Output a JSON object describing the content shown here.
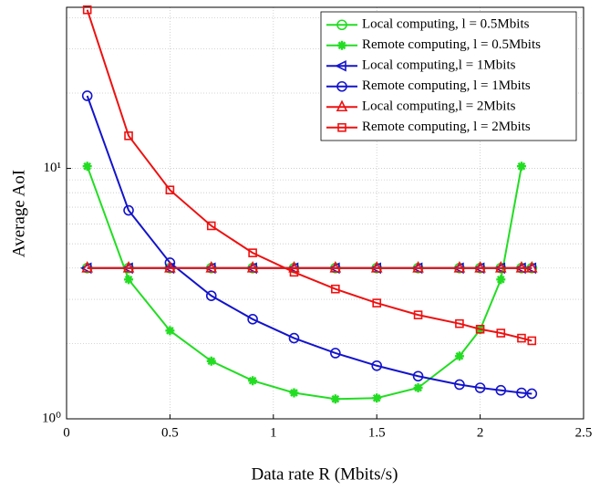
{
  "chart_data": {
    "type": "line",
    "xlabel": "Data rate R (Mbits/s)",
    "ylabel": "Average AoI",
    "x": [
      0.1,
      0.3,
      0.5,
      0.7,
      0.9,
      1.1,
      1.3,
      1.5,
      1.7,
      1.9,
      2.0,
      2.1,
      2.2,
      2.25
    ],
    "series": [
      {
        "name": "Local computing, l = 0.5Mbits",
        "color": "#22dd22",
        "marker": "circle",
        "values": [
          4,
          4,
          4,
          4,
          4,
          4,
          4,
          4,
          4,
          4,
          4,
          4,
          4,
          4
        ]
      },
      {
        "name": "Remote computing, l = 0.5Mbits",
        "color": "#22dd22",
        "marker": "star",
        "values": [
          10.2,
          3.6,
          2.25,
          1.7,
          1.42,
          1.27,
          1.2,
          1.21,
          1.33,
          1.78,
          2.27,
          3.6,
          10.2,
          null
        ]
      },
      {
        "name": "Local computing,l = 1Mbits",
        "color": "#1414cc",
        "marker": "triangle-left",
        "values": [
          4,
          4,
          4,
          4,
          4,
          4,
          4,
          4,
          4,
          4,
          4,
          4,
          4,
          4
        ]
      },
      {
        "name": "Remote computing, l = 1Mbits",
        "color": "#1414cc",
        "marker": "circle",
        "values": [
          19.5,
          6.8,
          4.2,
          3.1,
          2.5,
          2.1,
          1.83,
          1.63,
          1.48,
          1.37,
          1.33,
          1.3,
          1.27,
          1.26
        ]
      },
      {
        "name": "Local computing,l = 2Mbits",
        "color": "#ee1111",
        "marker": "triangle-up",
        "values": [
          4,
          4,
          4,
          4,
          4,
          4,
          4,
          4,
          4,
          4,
          4,
          4,
          4,
          4
        ]
      },
      {
        "name": "Remote computing, l = 2Mbits",
        "color": "#ee1111",
        "marker": "square",
        "values": [
          43,
          13.5,
          8.2,
          5.9,
          4.6,
          3.85,
          3.3,
          2.9,
          2.6,
          2.4,
          2.28,
          2.2,
          2.1,
          2.05
        ]
      }
    ],
    "xlim": [
      0,
      2.5
    ],
    "xticks": [
      0,
      0.5,
      1,
      1.5,
      2,
      2.5
    ],
    "ylim": [
      1,
      44
    ],
    "yticks": [
      {
        "value": 1,
        "label": "10⁰"
      },
      {
        "value": 10,
        "label": "10¹"
      }
    ],
    "log_y": true,
    "grid": true,
    "legend": "upper right"
  }
}
